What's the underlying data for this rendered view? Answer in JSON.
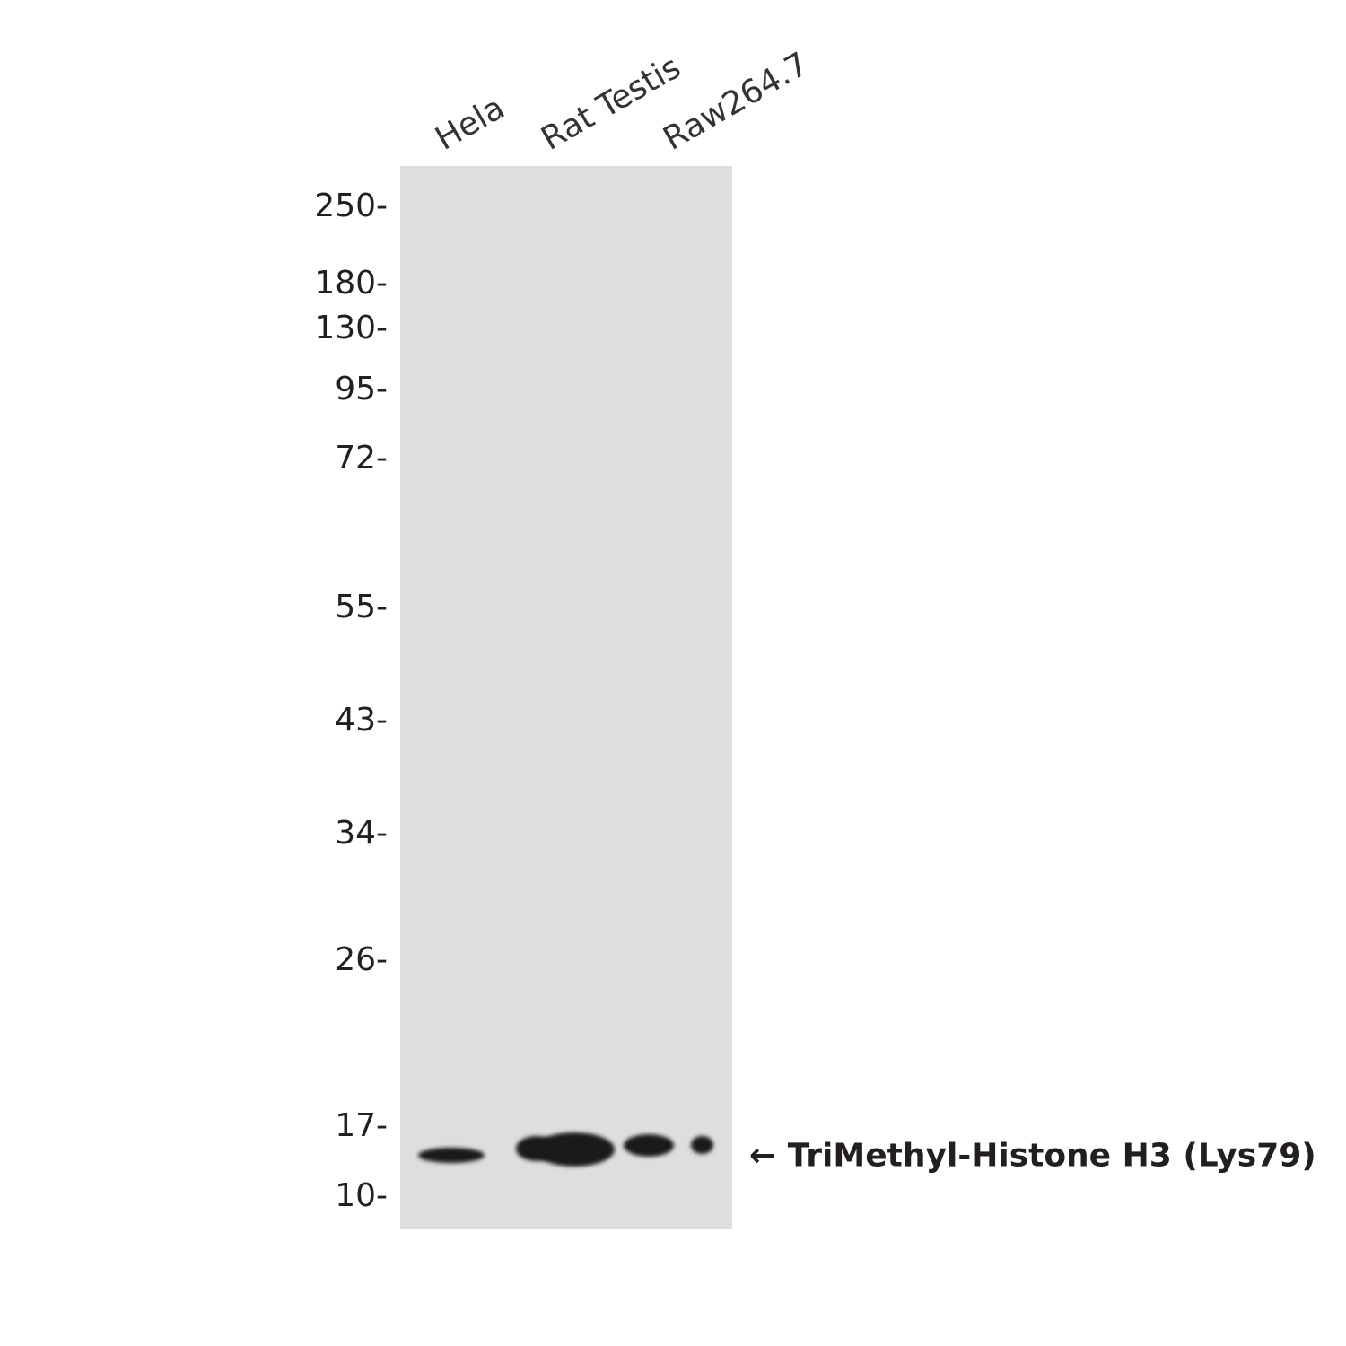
{
  "lanes": [
    "Hela",
    "Rat Testis",
    "Raw264.7"
  ],
  "markers": [
    "250-",
    "180-",
    "130-",
    "95-",
    "72-",
    "55-",
    "43-",
    "34-",
    "26-",
    "17-",
    "10-"
  ],
  "target_label": "← TriMethyl-Histone H3 (Lys79)",
  "colors": {
    "membrane": "#dedede",
    "band": "#1a1a1a",
    "text": "#231f20"
  }
}
